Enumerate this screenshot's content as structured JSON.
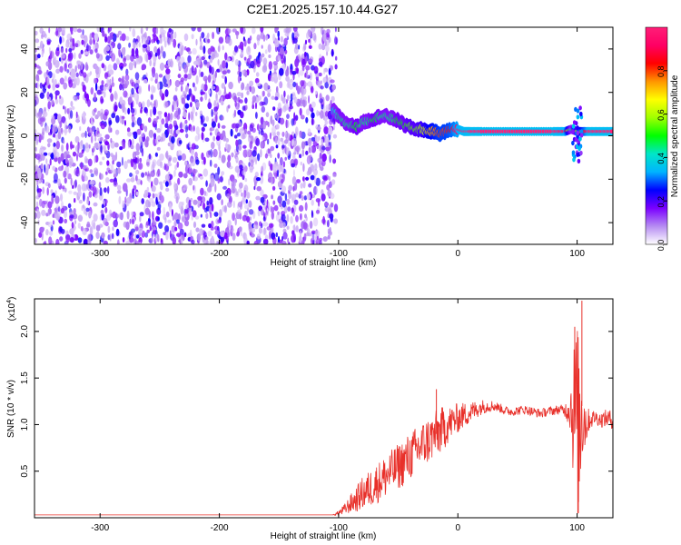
{
  "title": "C2E1.2025.157.10.44.G27",
  "chart_data": [
    {
      "type": "heatmap",
      "title": "",
      "xlabel": "Height of straight line (km)",
      "ylabel": "Frequency (Hz)",
      "xlim": [
        -355,
        130
      ],
      "ylim": [
        -50,
        50
      ],
      "xticks": [
        -300,
        -200,
        -100,
        0,
        100
      ],
      "xtick_labels": [
        "-300",
        "-200",
        "-100",
        "0",
        "100"
      ],
      "yticks": [
        -40,
        -20,
        0,
        20,
        40
      ],
      "ytick_labels": [
        "-40",
        "-20",
        "0",
        "20",
        "40"
      ],
      "noise_region": {
        "x_range": [
          -355,
          -102
        ],
        "freq_range": [
          -50,
          50
        ],
        "amplitude": "low (0.0-0.2)"
      },
      "signal_track": {
        "x": [
          -105,
          -100,
          -95,
          -90,
          -85,
          -80,
          -75,
          -70,
          -65,
          -60,
          -55,
          -50,
          -45,
          -40,
          -35,
          -30,
          -25,
          -20,
          -15,
          -10,
          -5,
          0,
          5,
          10,
          20,
          40,
          60,
          80,
          90,
          95,
          100,
          110,
          120,
          130
        ],
        "freq": [
          12,
          9,
          6,
          5,
          4,
          6,
          7,
          8,
          9,
          9,
          8,
          7,
          5,
          4,
          3,
          3,
          2,
          2,
          1,
          2,
          3,
          3,
          2,
          2,
          2,
          2,
          2,
          2,
          2,
          3,
          2,
          2,
          2,
          2
        ],
        "amplitude": [
          0.35,
          0.45,
          0.45,
          0.45,
          0.5,
          0.45,
          0.45,
          0.5,
          0.45,
          0.45,
          0.45,
          0.5,
          0.5,
          0.55,
          0.55,
          0.6,
          0.7,
          0.75,
          0.8,
          0.8,
          0.85,
          0.95,
          0.98,
          1.0,
          1.0,
          1.0,
          1.0,
          1.0,
          0.95,
          0.4,
          0.6,
          1.0,
          1.0,
          1.0
        ]
      },
      "burst": {
        "x": 100,
        "freq_range": [
          -12,
          13
        ]
      },
      "colorbar": {
        "label": "Normalized spectral amplitude",
        "range": [
          0,
          1
        ],
        "ticks": [
          0.0,
          0.2,
          0.4,
          0.6,
          0.8
        ],
        "tick_labels": [
          "0.0",
          "0.2",
          "0.4",
          "0.6",
          "0.8"
        ],
        "colors": [
          "#ffffff",
          "#b68cf2",
          "#7a00ff",
          "#0000ff",
          "#00b4ff",
          "#00e6c8",
          "#00ff00",
          "#a0ff00",
          "#ffff00",
          "#ff9600",
          "#ff0000",
          "#ff0064",
          "#ff1e78"
        ]
      },
      "legend": "none",
      "grid": false
    },
    {
      "type": "line",
      "title": "",
      "xlabel": "Height of straight line (km)",
      "ylabel": "SNR (10 * v/v)",
      "y_multiplier_label": "(x10",
      "y_multiplier_exp": "4",
      "y_multiplier_close": ")",
      "xlim": [
        -355,
        130
      ],
      "ylim": [
        0,
        2.35
      ],
      "xticks": [
        -300,
        -200,
        -100,
        0,
        100
      ],
      "xtick_labels": [
        "-300",
        "-200",
        "-100",
        "0",
        "100"
      ],
      "yticks": [
        0.5,
        1.0,
        1.5,
        2.0
      ],
      "ytick_labels": [
        "0.5",
        "1.0",
        "1.5",
        "2.0"
      ],
      "series": [
        {
          "color": "#e8302a",
          "x": [
            -355,
            -300,
            -250,
            -200,
            -150,
            -105,
            -100,
            -95,
            -90,
            -85,
            -80,
            -75,
            -70,
            -65,
            -60,
            -55,
            -50,
            -45,
            -40,
            -35,
            -30,
            -25,
            -20,
            -16,
            -12,
            -8,
            -4,
            0,
            5,
            10,
            15,
            20,
            25,
            30,
            35,
            40,
            45,
            50,
            55,
            60,
            65,
            70,
            75,
            80,
            85,
            90,
            95,
            97,
            100,
            102,
            104,
            106,
            108,
            110,
            115,
            120,
            125,
            130
          ],
          "y": [
            0.03,
            0.03,
            0.03,
            0.03,
            0.03,
            0.03,
            0.05,
            0.09,
            0.15,
            0.2,
            0.26,
            0.3,
            0.35,
            0.4,
            0.45,
            0.5,
            0.55,
            0.6,
            0.66,
            0.72,
            0.78,
            0.83,
            0.88,
            0.92,
            0.96,
            1.0,
            1.04,
            1.07,
            1.1,
            1.13,
            1.16,
            1.19,
            1.2,
            1.2,
            1.18,
            1.15,
            1.14,
            1.15,
            1.16,
            1.15,
            1.13,
            1.12,
            1.14,
            1.15,
            1.16,
            1.15,
            1.2,
            1.1,
            1.05,
            0.9,
            1.2,
            1.05,
            1.0,
            1.05,
            1.08,
            1.05,
            1.07,
            1.05
          ],
          "noise_band": [
            0,
            0,
            0,
            0,
            0,
            0,
            0.03,
            0.06,
            0.1,
            0.14,
            0.18,
            0.2,
            0.22,
            0.22,
            0.24,
            0.24,
            0.25,
            0.26,
            0.26,
            0.26,
            0.26,
            0.26,
            0.26,
            0.26,
            0.24,
            0.2,
            0.18,
            0.16,
            0.14,
            0.12,
            0.1,
            0.08,
            0.07,
            0.06,
            0.05,
            0.05,
            0.05,
            0.05,
            0.05,
            0.05,
            0.05,
            0.05,
            0.05,
            0.05,
            0.05,
            0.07,
            0.3,
            0.8,
            1.1,
            0.9,
            0.7,
            0.4,
            0.2,
            0.12,
            0.08,
            0.08,
            0.1,
            0.1
          ]
        }
      ],
      "peaks": [
        {
          "x": -18,
          "y": 1.38
        },
        {
          "x": 104,
          "y": 2.33
        },
        {
          "x": 98,
          "y": 2.05
        },
        {
          "x": 101,
          "y": 0.05
        }
      ],
      "legend": "none",
      "grid": false
    }
  ]
}
